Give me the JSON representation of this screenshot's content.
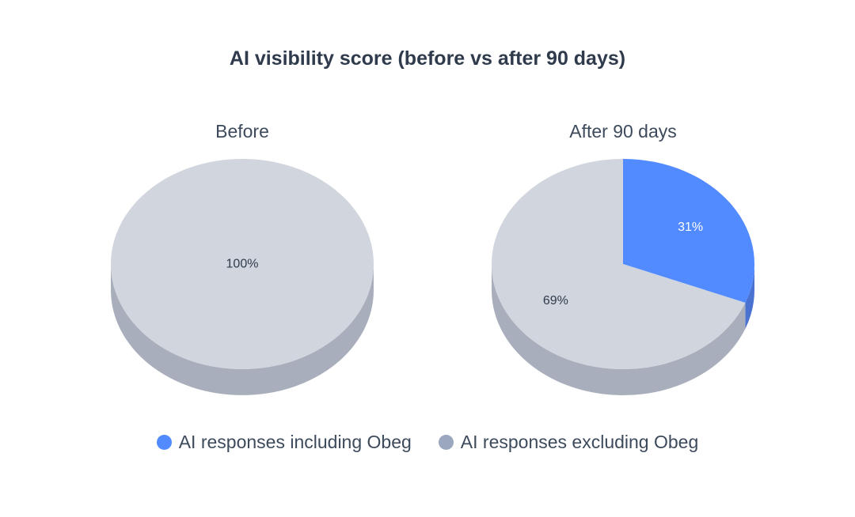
{
  "chart_data": {
    "type": "pie",
    "title": "AI visibility score (before vs after 90 days)",
    "legend": {
      "placement": "bottom",
      "entries": [
        {
          "name": "AI responses including Obeg",
          "color": "#528bff"
        },
        {
          "name": "AI responses excluding Obeg",
          "color": "#d1d5de"
        }
      ]
    },
    "pies": [
      {
        "subtitle": "Before",
        "slices": [
          {
            "label": "AI responses including Obeg",
            "value": 0,
            "text": ""
          },
          {
            "label": "AI responses excluding Obeg",
            "value": 100,
            "text": "100%"
          }
        ]
      },
      {
        "subtitle": "After 90 days",
        "slices": [
          {
            "label": "AI responses including Obeg",
            "value": 31,
            "text": "31%"
          },
          {
            "label": "AI responses excluding Obeg",
            "value": 69,
            "text": "69%"
          }
        ]
      }
    ]
  },
  "colors": {
    "including_top": "#528bff",
    "including_side": "#4a72d0",
    "excluding_top": "#d1d5de",
    "excluding_side": "#a8aebb",
    "legend_excluding_dot": "#9aa7bf",
    "label_on_blue": "#ffffff",
    "label_on_gray": "#2f3b4c"
  }
}
